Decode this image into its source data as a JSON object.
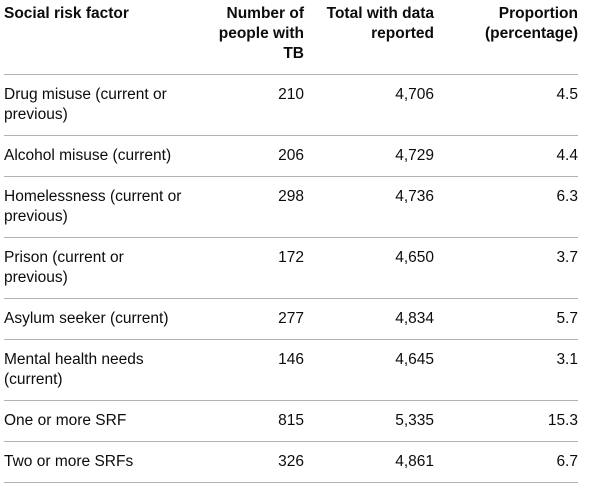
{
  "table": {
    "headers": [
      "Social risk factor",
      "Number of people with TB",
      "Total with data reported",
      "Proportion (percentage)"
    ],
    "rows": [
      [
        "Drug misuse (current or previous)",
        "210",
        "4,706",
        "4.5"
      ],
      [
        "Alcohol misuse (current)",
        "206",
        "4,729",
        "4.4"
      ],
      [
        "Homelessness (current or previous)",
        "298",
        "4,736",
        "6.3"
      ],
      [
        "Prison (current or previous)",
        "172",
        "4,650",
        "3.7"
      ],
      [
        "Asylum seeker (current)",
        "277",
        "4,834",
        "5.7"
      ],
      [
        "Mental health needs (current)",
        "146",
        "4,645",
        "3.1"
      ],
      [
        "One or more SRF",
        "815",
        "5,335",
        "15.3"
      ],
      [
        "Two or more SRFs",
        "326",
        "4,861",
        "6.7"
      ]
    ]
  }
}
